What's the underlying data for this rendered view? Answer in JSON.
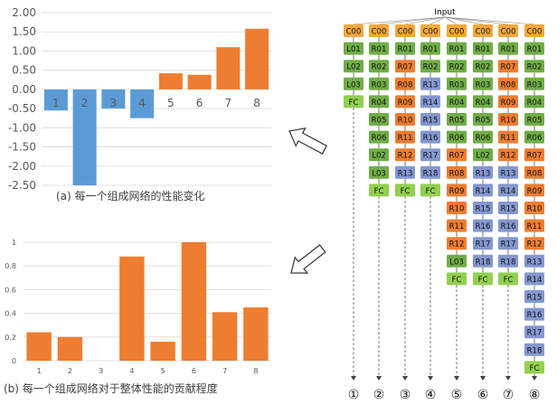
{
  "colors": {
    "pos_bar": "#ED7D31",
    "neg_bar": "#5B9BD5",
    "contrib_bar": "#ED7D31",
    "C": "#F4A83A",
    "L": "#70AD47",
    "R_green": "#70AD47",
    "R_orange": "#ED7D31",
    "R_blue": "#8497CF",
    "FC": "#92D050",
    "grid": "#D9D9D9",
    "axis_text": "#595959"
  },
  "chart_data": [
    {
      "type": "bar",
      "categories": [
        "1",
        "2",
        "3",
        "4",
        "5",
        "6",
        "7",
        "8"
      ],
      "values": [
        -0.55,
        -2.5,
        -0.5,
        -0.75,
        0.42,
        0.38,
        1.1,
        1.58
      ],
      "ylim": [
        -2.5,
        2.0
      ],
      "yticks": [
        "2.00",
        "1.50",
        "1.00",
        "0.50",
        "0.00",
        "-0.50",
        "-1.00",
        "-1.50",
        "-2.00",
        "-2.50"
      ],
      "caption": "(a)  每一个组成网络的性能变化",
      "grid": true
    },
    {
      "type": "bar",
      "categories": [
        "1",
        "2",
        "3",
        "4",
        "5",
        "6",
        "7",
        "8"
      ],
      "values": [
        0.24,
        0.2,
        0,
        0.88,
        0.16,
        1.0,
        0.41,
        0.45
      ],
      "ylim": [
        0,
        1.0
      ],
      "yticks": [
        "1",
        "0.8",
        "0.6",
        "0.4",
        "0.2",
        "0"
      ],
      "caption": "(b) 每一个组成网络对于整体性能的贡献程度",
      "grid": true
    }
  ],
  "diagram": {
    "input_label": "Input",
    "columns": [
      [
        "C00",
        "L01",
        "L02",
        "L03",
        "FC"
      ],
      [
        "C00",
        "R01",
        "R02",
        "R03",
        "R04",
        "R05",
        "R06",
        "L02",
        "L03",
        "FC"
      ],
      [
        "C00",
        "R01",
        "R07",
        "R08",
        "R09",
        "R10",
        "R11",
        "R12",
        "R13",
        "FC"
      ],
      [
        "C00",
        "R01",
        "R02",
        "R13",
        "R14",
        "R15",
        "R16",
        "R17",
        "R18",
        "FC"
      ],
      [
        "C00",
        "R01",
        "R02",
        "R03",
        "R04",
        "R05",
        "R06",
        "R07",
        "R08",
        "R09",
        "R10",
        "R11",
        "R12",
        "L03",
        "FC"
      ],
      [
        "C00",
        "R01",
        "R02",
        "R03",
        "R04",
        "R05",
        "R06",
        "L02",
        "R13",
        "R14",
        "R15",
        "R16",
        "R17",
        "R18",
        "FC"
      ],
      [
        "C00",
        "R01",
        "R07",
        "R08",
        "R09",
        "R10",
        "R11",
        "R12",
        "R13",
        "R14",
        "R15",
        "R16",
        "R17",
        "R18",
        "FC"
      ],
      [
        "C00",
        "R01",
        "R02",
        "R03",
        "R04",
        "R05",
        "R06",
        "R07",
        "R08",
        "R09",
        "R10",
        "R11",
        "R12",
        "R13",
        "R14",
        "R15",
        "R16",
        "R17",
        "R18",
        "FC"
      ]
    ],
    "output_labels": [
      "①",
      "②",
      "③",
      "④",
      "⑤",
      "⑥",
      "⑦",
      "⑧"
    ]
  }
}
